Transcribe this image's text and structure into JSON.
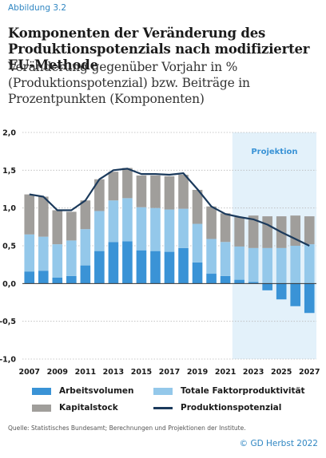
{
  "header": {
    "figure_label": "Abbildung 3.2",
    "title": "Komponenten der Veränderung des Produktionspotenzials nach modifizierter EU-Methode",
    "subtitle": "Veränderung gegenüber Vorjahr in % (Produktionspotenzial) bzw. Beiträge in Prozentpunkten (Komponenten)"
  },
  "chart_data": {
    "type": "bar",
    "stacked": true,
    "categories": [
      "2007",
      "2008",
      "2009",
      "2010",
      "2011",
      "2012",
      "2013",
      "2014",
      "2015",
      "2016",
      "2017",
      "2018",
      "2019",
      "2020",
      "2021",
      "2022",
      "2023",
      "2024",
      "2025",
      "2026",
      "2027"
    ],
    "x_tick_labels": [
      "2007",
      "2009",
      "2011",
      "2013",
      "2015",
      "2017",
      "2019",
      "2021",
      "2023",
      "2025",
      "2027"
    ],
    "y_tick_labels": [
      "2,0",
      "1,5",
      "1,0",
      "0,5",
      "0,0",
      "-0,5",
      "-1,0"
    ],
    "ylim": [
      -1.0,
      2.0
    ],
    "grid": true,
    "projection_label": "Projektion",
    "projection_start": "2022",
    "series": [
      {
        "name": "Arbeitsvolumen",
        "color": "#3a93d6",
        "values": [
          0.16,
          0.17,
          0.08,
          0.1,
          0.24,
          0.43,
          0.55,
          0.56,
          0.44,
          0.43,
          0.42,
          0.47,
          0.28,
          0.13,
          0.1,
          0.05,
          0.02,
          -0.09,
          -0.21,
          -0.3,
          -0.39
        ]
      },
      {
        "name": "Totale Faktorproduktivität",
        "color": "#94c8ea",
        "values": [
          0.49,
          0.45,
          0.44,
          0.47,
          0.48,
          0.53,
          0.55,
          0.57,
          0.57,
          0.57,
          0.56,
          0.52,
          0.51,
          0.46,
          0.45,
          0.44,
          0.45,
          0.47,
          0.47,
          0.5,
          0.52
        ]
      },
      {
        "name": "Kapitalstock",
        "color": "#a09e9b",
        "values": [
          0.53,
          0.53,
          0.45,
          0.38,
          0.38,
          0.42,
          0.38,
          0.4,
          0.42,
          0.43,
          0.44,
          0.45,
          0.45,
          0.43,
          0.38,
          0.39,
          0.43,
          0.42,
          0.42,
          0.4,
          0.37
        ]
      },
      {
        "name": "Produktionspotenzial",
        "type": "line",
        "color": "#1b3a5c",
        "values": [
          1.18,
          1.15,
          0.97,
          0.97,
          1.1,
          1.38,
          1.5,
          1.52,
          1.45,
          1.45,
          1.44,
          1.46,
          1.25,
          1.02,
          0.92,
          0.88,
          0.85,
          0.78,
          0.68,
          0.59,
          0.5
        ]
      }
    ]
  },
  "legend": {
    "items": [
      {
        "label": "Arbeitsvolumen",
        "color": "#3a93d6"
      },
      {
        "label": "Totale Faktorproduktivität",
        "color": "#94c8ea"
      },
      {
        "label": "Kapitalstock",
        "color": "#a09e9b"
      },
      {
        "label": "Produktionspotenzial",
        "color": "#1b3a5c"
      }
    ]
  },
  "footer": {
    "source": "Quelle: Statistisches Bundesamt; Berechnungen und Projektionen der Institute.",
    "credit": "© GD Herbst 2022"
  }
}
